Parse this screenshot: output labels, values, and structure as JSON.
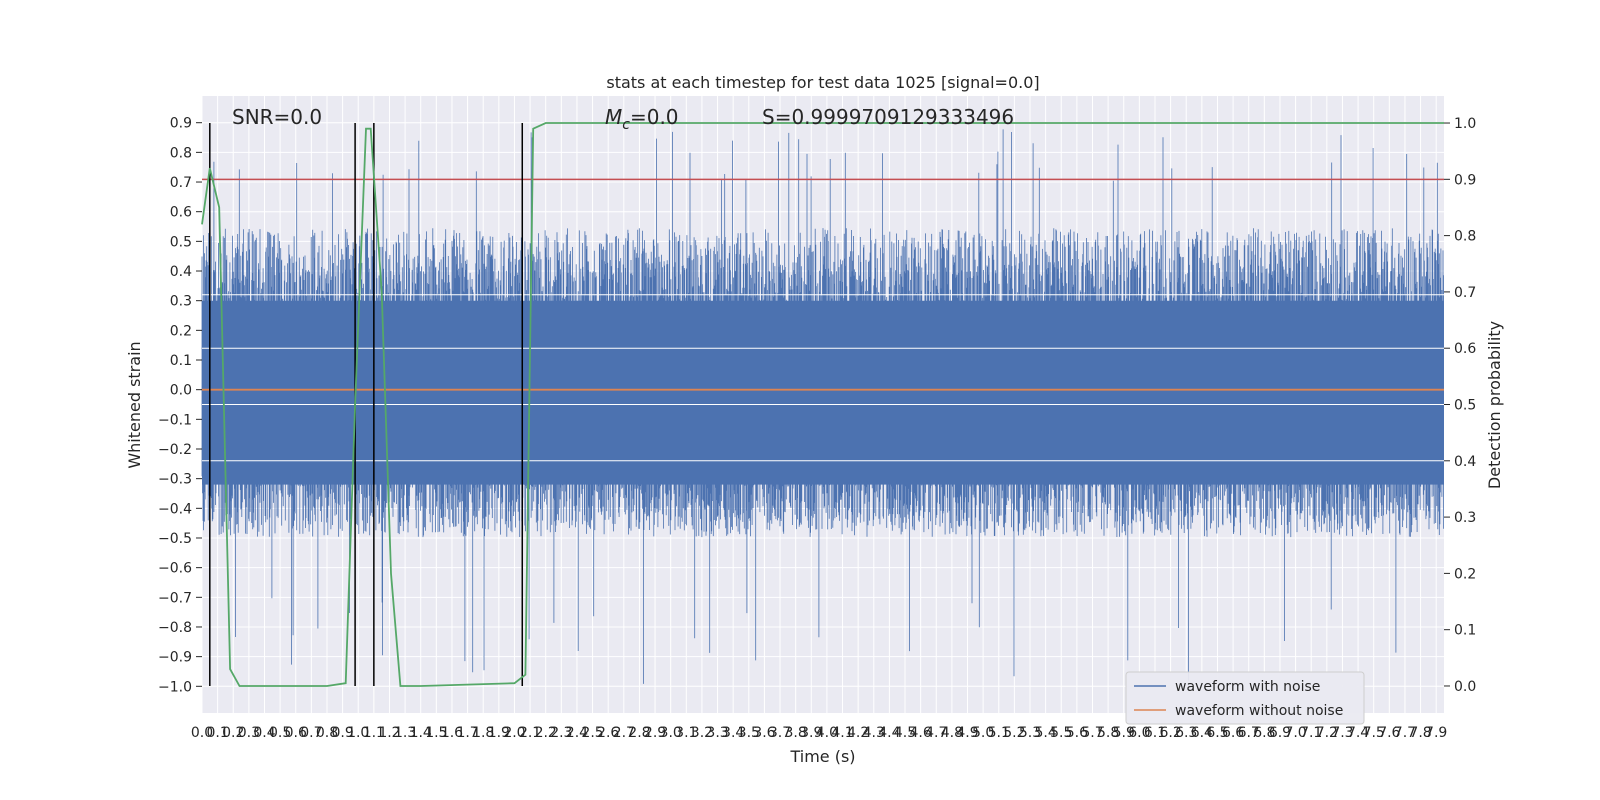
{
  "chart_data": {
    "type": "line",
    "title": "stats at each timestep for test data 1025 [signal=0.0]",
    "xlabel": "Time (s)",
    "ylabel": "Whitened strain",
    "y2label": "Detection probability",
    "xlim": [
      0.0,
      7.95
    ],
    "ylim": [
      -1.09,
      0.99
    ],
    "y2lim": [
      -0.048,
      1.048
    ],
    "x_ticks": [
      0.0,
      0.1,
      0.2,
      0.3,
      0.4,
      0.5,
      0.6,
      0.7,
      0.8,
      0.9,
      1.0,
      1.1,
      1.2,
      1.3,
      1.4,
      1.5,
      1.6,
      1.7,
      1.8,
      1.9,
      2.0,
      2.1,
      2.2,
      2.3,
      2.4,
      2.5,
      2.6,
      2.7,
      2.8,
      2.9,
      3.0,
      3.1,
      3.2,
      3.3,
      3.4,
      3.5,
      3.6,
      3.7,
      3.8,
      3.9,
      4.0,
      4.1,
      4.2,
      4.3,
      4.4,
      4.5,
      4.6,
      4.7,
      4.8,
      4.9,
      5.0,
      5.1,
      5.2,
      5.3,
      5.4,
      5.5,
      5.6,
      5.7,
      5.8,
      5.9,
      6.0,
      6.1,
      6.2,
      6.3,
      6.4,
      6.5,
      6.6,
      6.7,
      6.8,
      6.9,
      7.0,
      7.1,
      7.2,
      7.3,
      7.4,
      7.5,
      7.6,
      7.7,
      7.8,
      7.9
    ],
    "x_tick_labels": [
      "0.0",
      "0.1",
      "0.2",
      "0.3",
      "0.4",
      "0.5",
      "0.6",
      "0.7",
      "0.8",
      "0.9",
      "1.0",
      "1.1",
      "1.2",
      "1.3",
      "1.4",
      "1.5",
      "1.6",
      "1.7",
      "1.8",
      "1.9",
      "2.0",
      "2.1",
      "2.2",
      "2.3",
      "2.4",
      "2.5",
      "2.6",
      "2.7",
      "2.8",
      "2.9",
      "3.0",
      "3.1",
      "3.2",
      "3.3",
      "3.4",
      "3.5",
      "3.6",
      "3.7",
      "3.8",
      "3.9",
      "4.0",
      "4.1",
      "4.2",
      "4.3",
      "4.4",
      "4.5",
      "4.6",
      "4.7",
      "4.8",
      "4.9",
      "5.0",
      "5.1",
      "5.2",
      "5.3",
      "5.4",
      "5.5",
      "5.6",
      "5.7",
      "5.8",
      "5.9",
      "6.0",
      "6.1",
      "6.2",
      "6.3",
      "6.4",
      "6.5",
      "6.6",
      "6.7",
      "6.8",
      "6.9",
      "7.0",
      "7.1",
      "7.2",
      "7.3",
      "7.4",
      "7.5",
      "7.6",
      "7.7",
      "7.8",
      "7.9"
    ],
    "y_ticks": [
      0.9,
      0.8,
      0.7,
      0.6,
      0.5,
      0.4,
      0.3,
      0.2,
      0.1,
      0.0,
      -0.1,
      -0.2,
      -0.3,
      -0.4,
      -0.5,
      -0.6,
      -0.7,
      -0.8,
      -0.9,
      -1.0
    ],
    "y_tick_labels": [
      "0.9",
      "0.8",
      "0.7",
      "0.6",
      "0.5",
      "0.4",
      "0.3",
      "0.2",
      "0.1",
      "0.0",
      "−0.1",
      "−0.2",
      "−0.3",
      "−0.4",
      "−0.5",
      "−0.6",
      "−0.7",
      "−0.8",
      "−0.9",
      "−1.0"
    ],
    "y2_ticks": [
      1.0,
      0.9,
      0.8,
      0.7,
      0.6,
      0.5,
      0.4,
      0.3,
      0.2,
      0.1,
      0.0
    ],
    "y2_tick_labels": [
      "1.0",
      "0.9",
      "0.8",
      "0.7",
      "0.6",
      "0.5",
      "0.4",
      "0.3",
      "0.2",
      "0.1",
      "0.0"
    ],
    "annotations": [
      "SNR=0.0",
      "M",
      "c",
      "=0.0",
      "S=0.9999709129333496"
    ],
    "series": [
      {
        "name": "waveform with noise",
        "color": "#4c72b0",
        "kind": "noise",
        "envelope_upper": 0.55,
        "envelope_lower": -0.5,
        "max": 0.88,
        "min": -1.0
      },
      {
        "name": "waveform without noise",
        "color": "#dd8452",
        "x": [
          0.0,
          7.95
        ],
        "y": [
          0.0,
          0.0
        ]
      }
    ],
    "threshold": {
      "value": 0.9,
      "axis": "y2",
      "color": "#c44e52"
    },
    "detection_probability": {
      "color": "#55a868",
      "x": [
        0.0,
        0.05,
        0.11,
        0.18,
        0.24,
        0.8,
        0.92,
        0.98,
        1.05,
        1.08,
        1.15,
        1.21,
        1.27,
        1.3,
        1.4,
        2.0,
        2.07,
        2.12,
        2.2,
        7.95
      ],
      "y": [
        0.82,
        0.92,
        0.85,
        0.03,
        0.0,
        0.0,
        0.005,
        0.5,
        0.99,
        0.99,
        0.7,
        0.2,
        0.0,
        0.0,
        0.0,
        0.005,
        0.02,
        0.99,
        1.0,
        1.0
      ]
    },
    "vertical_markers": [
      0.05,
      0.98,
      1.1,
      2.05
    ],
    "legend": {
      "placement": "lower-right",
      "entries": [
        "waveform with noise",
        "waveform without noise"
      ]
    },
    "grid": true
  }
}
